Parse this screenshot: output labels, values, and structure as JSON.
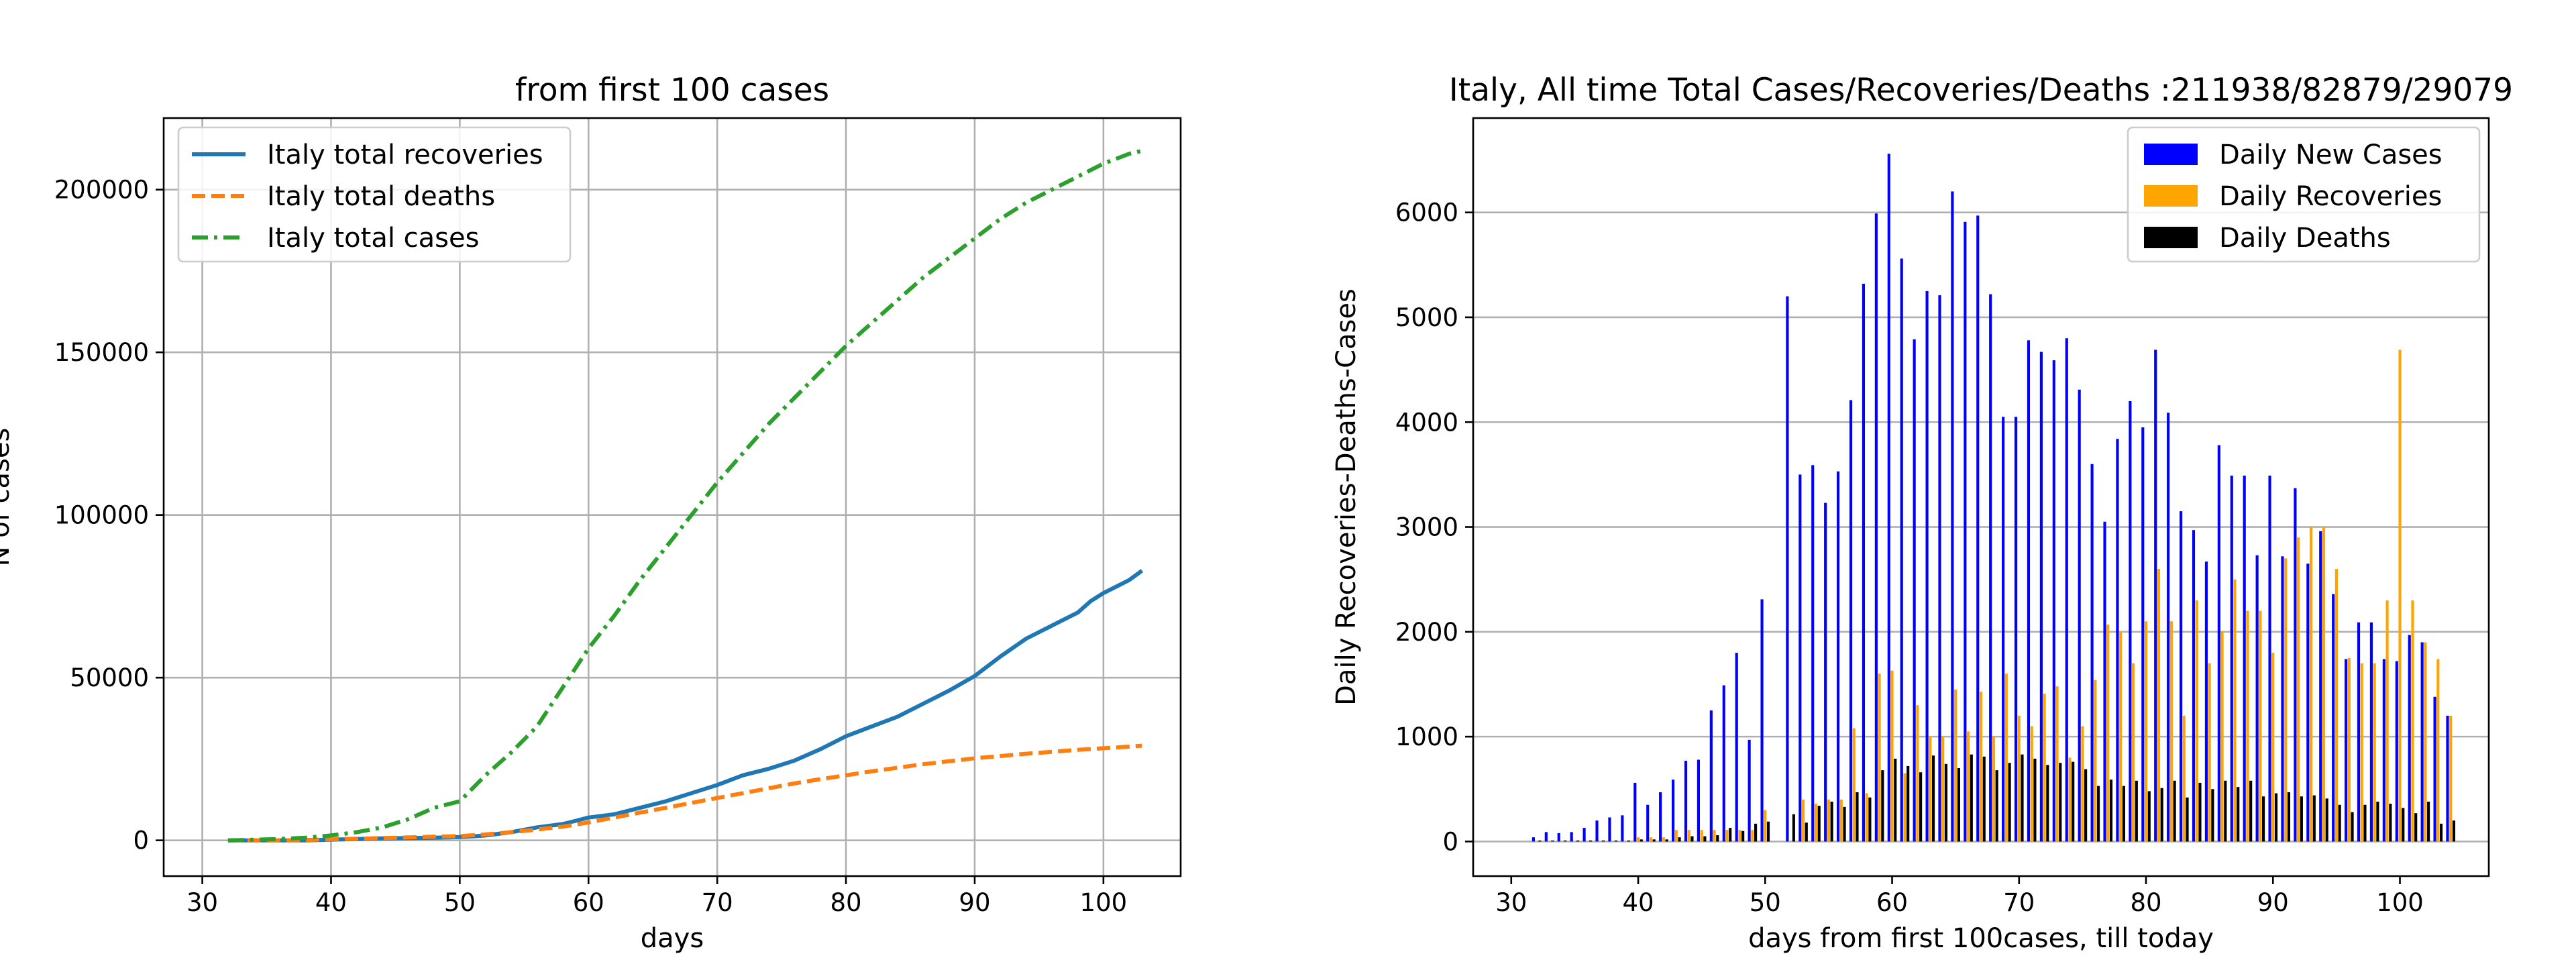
{
  "chart_data": [
    {
      "type": "line",
      "title": "from first 100  cases",
      "xlabel": "days",
      "ylabel": "N of cases",
      "xlim": [
        27,
        106
      ],
      "ylim": [
        -11000,
        222000
      ],
      "xticks": [
        30,
        40,
        50,
        60,
        70,
        80,
        90,
        100
      ],
      "yticks": [
        0,
        50000,
        100000,
        150000,
        200000
      ],
      "grid": true,
      "legend_position": "top-left",
      "series": [
        {
          "name": "Italy total recoveries",
          "color": "#1f77b4",
          "style": "solid",
          "x": [
            32,
            34,
            36,
            38,
            40,
            42,
            44,
            46,
            48,
            50,
            51,
            52,
            54,
            56,
            58,
            59,
            60,
            62,
            64,
            66,
            68,
            70,
            72,
            74,
            76,
            78,
            80,
            82,
            84,
            86,
            88,
            90,
            92,
            94,
            96,
            98,
            99,
            100,
            101,
            102,
            103
          ],
          "y": [
            0,
            0,
            0,
            0,
            200,
            400,
            600,
            700,
            800,
            1000,
            1200,
            1500,
            2500,
            4000,
            5000,
            6000,
            7000,
            8000,
            10000,
            12000,
            14500,
            17000,
            20000,
            22000,
            24500,
            28000,
            32000,
            35000,
            38000,
            42000,
            46000,
            50500,
            56500,
            62000,
            66000,
            70000,
            73500,
            76000,
            78000,
            80000,
            82879
          ]
        },
        {
          "name": "Italy total deaths",
          "color": "#ff7f0e",
          "style": "dashed",
          "x": [
            32,
            34,
            36,
            38,
            40,
            42,
            44,
            46,
            48,
            50,
            52,
            54,
            56,
            58,
            60,
            62,
            64,
            66,
            68,
            70,
            72,
            74,
            76,
            78,
            80,
            82,
            84,
            86,
            88,
            90,
            92,
            94,
            96,
            98,
            100,
            102,
            103
          ],
          "y": [
            0,
            0,
            0,
            100,
            300,
            500,
            700,
            900,
            1100,
            1300,
            1800,
            2500,
            3300,
            4200,
            5500,
            7000,
            8500,
            10000,
            11500,
            13000,
            14500,
            16000,
            17500,
            18800,
            20000,
            21200,
            22300,
            23400,
            24300,
            25200,
            25900,
            26600,
            27200,
            27800,
            28300,
            28800,
            29079
          ]
        },
        {
          "name": "Italy total cases",
          "color": "#2ca02c",
          "style": "dashdot",
          "x": [
            32,
            34,
            36,
            38,
            40,
            42,
            44,
            46,
            48,
            49,
            50,
            52,
            54,
            56,
            58,
            60,
            62,
            64,
            66,
            68,
            70,
            72,
            74,
            76,
            78,
            80,
            82,
            84,
            86,
            88,
            90,
            92,
            94,
            96,
            98,
            100,
            102,
            103
          ],
          "y": [
            0,
            200,
            400,
            800,
            1500,
            2500,
            4000,
            6500,
            10000,
            11000,
            12000,
            20000,
            27000,
            35000,
            47000,
            59000,
            69000,
            80000,
            90000,
            100000,
            110000,
            119000,
            128000,
            136000,
            144000,
            152000,
            159000,
            166000,
            173000,
            179000,
            185000,
            191000,
            196000,
            200000,
            204000,
            208000,
            211000,
            211938
          ]
        }
      ]
    },
    {
      "type": "bar",
      "title": "Italy, All time Total Cases/Recoveries/Deaths :211938/82879/29079",
      "xlabel": "days from first 100cases, till today",
      "ylabel": "Daily Recoveries-Deaths-Cases",
      "xlim": [
        27,
        107
      ],
      "ylim": [
        -330,
        6900
      ],
      "xticks": [
        30,
        40,
        50,
        60,
        70,
        80,
        90,
        100
      ],
      "yticks": [
        0,
        1000,
        2000,
        3000,
        4000,
        5000,
        6000
      ],
      "grid": "y",
      "legend_position": "top-right",
      "x": [
        32,
        33,
        34,
        35,
        36,
        37,
        38,
        39,
        40,
        41,
        42,
        43,
        44,
        45,
        46,
        47,
        48,
        49,
        50,
        51,
        52,
        53,
        54,
        55,
        56,
        57,
        58,
        59,
        60,
        61,
        62,
        63,
        64,
        65,
        66,
        67,
        68,
        69,
        70,
        71,
        72,
        73,
        74,
        75,
        76,
        77,
        78,
        79,
        80,
        81,
        82,
        83,
        84,
        85,
        86,
        87,
        88,
        89,
        90,
        91,
        92,
        93,
        94,
        95,
        96,
        97,
        98,
        99,
        100,
        101,
        102,
        103,
        104
      ],
      "series": [
        {
          "name": "Daily New Cases",
          "color": "#0000ff",
          "values": [
            40,
            90,
            80,
            90,
            130,
            200,
            230,
            250,
            560,
            350,
            470,
            590,
            770,
            780,
            1250,
            1490,
            1800,
            970,
            2310,
            0,
            5200,
            3500,
            3590,
            3230,
            3530,
            4210,
            5320,
            5990,
            6560,
            5560,
            4790,
            5250,
            5210,
            6200,
            5910,
            5970,
            5220,
            4050,
            4050,
            4780,
            4670,
            4590,
            4800,
            4310,
            3600,
            3050,
            3840,
            4200,
            3950,
            4690,
            4090,
            3150,
            2970,
            2670,
            3780,
            3490,
            3490,
            2730,
            3490,
            2720,
            3370,
            2650,
            2960,
            2360,
            1740,
            2090,
            2090,
            1740,
            1720,
            1970,
            1900,
            1380,
            1200
          ]
        },
        {
          "name": "Daily Recoveries",
          "color": "#ffa500",
          "values": [
            0,
            0,
            0,
            0,
            0,
            0,
            0,
            0,
            40,
            40,
            40,
            110,
            110,
            110,
            110,
            110,
            110,
            110,
            300,
            0,
            0,
            400,
            360,
            400,
            400,
            1080,
            460,
            1600,
            1630,
            650,
            1300,
            1000,
            1000,
            1450,
            1050,
            1430,
            1000,
            1600,
            1200,
            1100,
            1410,
            1480,
            800,
            1100,
            1540,
            2070,
            2000,
            1700,
            2100,
            2600,
            2100,
            1200,
            2300,
            1700,
            2000,
            2500,
            2200,
            2200,
            1800,
            2700,
            2900,
            3000,
            3000,
            2600,
            1750,
            1700,
            1700,
            2300,
            4690,
            2300,
            1900,
            1740,
            1200
          ]
        },
        {
          "name": "Daily Deaths",
          "color": "#000000",
          "values": [
            10,
            10,
            10,
            10,
            10,
            10,
            10,
            10,
            20,
            20,
            20,
            40,
            50,
            50,
            60,
            130,
            100,
            170,
            190,
            0,
            260,
            180,
            340,
            380,
            330,
            470,
            420,
            680,
            790,
            720,
            660,
            820,
            740,
            700,
            830,
            810,
            680,
            750,
            830,
            790,
            730,
            750,
            760,
            690,
            530,
            590,
            530,
            580,
            480,
            510,
            580,
            420,
            560,
            500,
            580,
            520,
            580,
            430,
            460,
            470,
            430,
            440,
            410,
            350,
            280,
            350,
            380,
            360,
            320,
            270,
            380,
            170,
            200
          ]
        }
      ]
    }
  ]
}
